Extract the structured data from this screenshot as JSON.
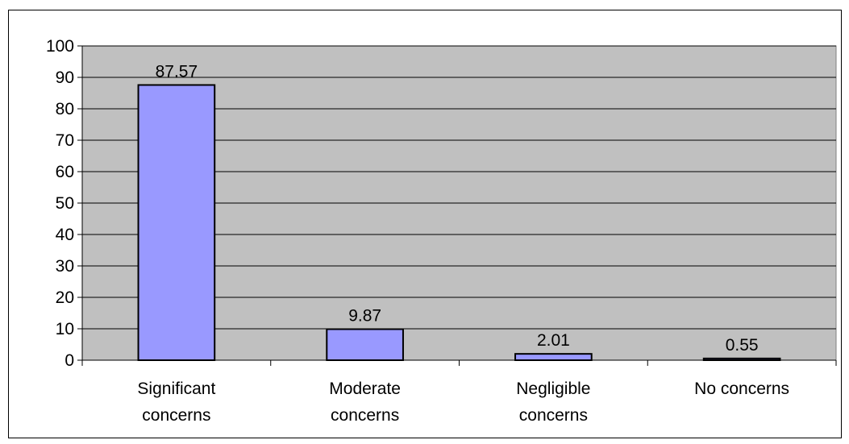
{
  "chart_data": {
    "type": "bar",
    "title": "",
    "xlabel": "",
    "ylabel": "",
    "categories": [
      [
        "Significant",
        "concerns"
      ],
      [
        "Moderate",
        "concerns"
      ],
      [
        "Negligible",
        "concerns"
      ],
      [
        "No concerns"
      ]
    ],
    "values": [
      87.57,
      9.87,
      2.01,
      0.55
    ],
    "value_labels": [
      "87.57",
      "9.87",
      "2.01",
      "0.55"
    ],
    "ylim": [
      0,
      100
    ],
    "yticks": [
      0,
      10,
      20,
      30,
      40,
      50,
      60,
      70,
      80,
      90,
      100
    ],
    "grid": true,
    "legend": "none",
    "colors": {
      "bar_fill": "#9999ff",
      "bar_stroke": "#000000",
      "plot_background": "#c0c0c0",
      "gridline": "#000000"
    }
  }
}
